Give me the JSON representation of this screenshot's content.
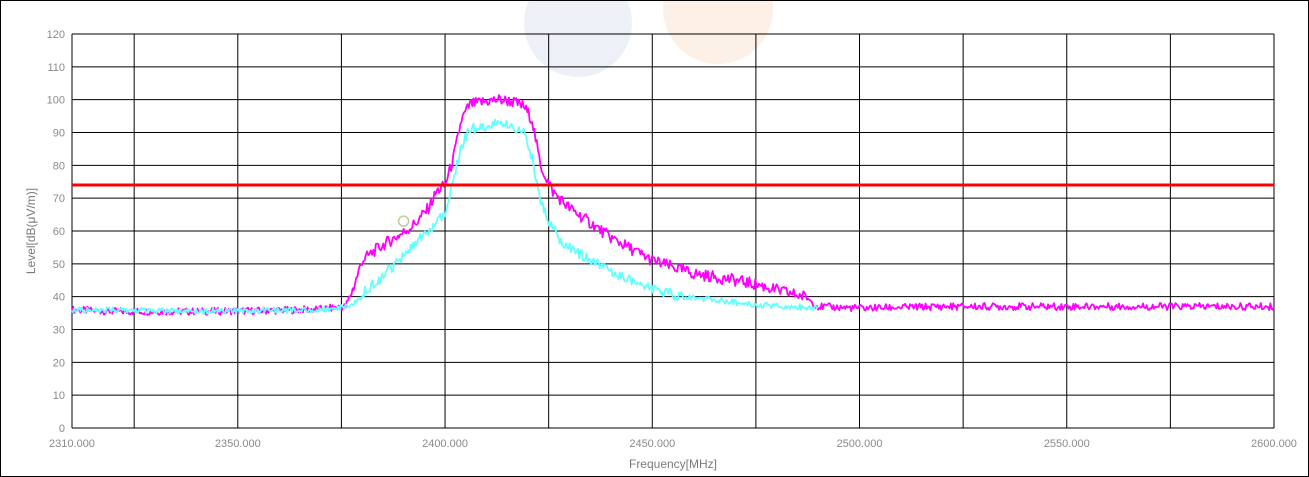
{
  "chart_data": {
    "type": "line",
    "title": "",
    "xlabel": "Frequency[MHz]",
    "ylabel": "Level[dB(μV/m)]",
    "xlim": [
      2310,
      2600
    ],
    "ylim": [
      0,
      120
    ],
    "grid": true,
    "x_tick_labels": [
      "2310.000",
      "2350.000",
      "2400.000",
      "2450.000",
      "2500.000",
      "2550.000",
      "2600.000"
    ],
    "x_ticks": [
      2310,
      2325,
      2350,
      2375,
      2400,
      2425,
      2450,
      2475,
      2500,
      2525,
      2550,
      2575,
      2600
    ],
    "y_tick_labels": [
      "0",
      "10",
      "20",
      "30",
      "40",
      "50",
      "60",
      "70",
      "80",
      "90",
      "100",
      "110",
      "120"
    ],
    "y_ticks": [
      0,
      10,
      20,
      30,
      40,
      50,
      60,
      70,
      80,
      90,
      100,
      110,
      120
    ],
    "limit_line": {
      "value": 74,
      "color": "#ff0000"
    },
    "marker": {
      "x": 2390,
      "y": 63,
      "color": "#c8c8a0"
    },
    "series": [
      {
        "color": "#ff00ff",
        "x": [
          2310,
          2320,
          2340,
          2360,
          2370,
          2376,
          2378,
          2380,
          2383,
          2386,
          2390,
          2393,
          2396,
          2398,
          2400,
          2402,
          2404,
          2406,
          2410,
          2413,
          2416,
          2419,
          2421,
          2423,
          2426,
          2430,
          2440,
          2450,
          2460,
          2470,
          2476,
          2480,
          2485,
          2487,
          2490,
          2500,
          2520,
          2540,
          2560,
          2580,
          2600
        ],
        "y": [
          36,
          35.5,
          35.5,
          35.8,
          36.2,
          37,
          43,
          51,
          54,
          56.5,
          59.5,
          62.5,
          67,
          72,
          74,
          82,
          94,
          98.5,
          99.5,
          100,
          99.5,
          98,
          94,
          80,
          72,
          67,
          58,
          51,
          47,
          45,
          43.5,
          42,
          40.5,
          40,
          37,
          36.5,
          37,
          37,
          37,
          37,
          37
        ]
      },
      {
        "color": "#66ffff",
        "x": [
          2310,
          2340,
          2370,
          2376,
          2378,
          2381,
          2384,
          2388,
          2392,
          2396,
          2400,
          2402,
          2404,
          2406,
          2410,
          2413,
          2416,
          2419,
          2421,
          2423,
          2425,
          2428,
          2435,
          2445,
          2455,
          2465,
          2475,
          2485,
          2490
        ],
        "y": [
          36,
          35.5,
          36,
          37,
          38,
          42,
          45,
          50,
          55,
          60,
          66,
          76,
          86,
          91,
          92,
          92.5,
          92,
          90,
          82,
          70,
          63,
          57,
          51,
          45,
          40.5,
          39,
          37.5,
          37,
          36.5
        ]
      }
    ]
  }
}
